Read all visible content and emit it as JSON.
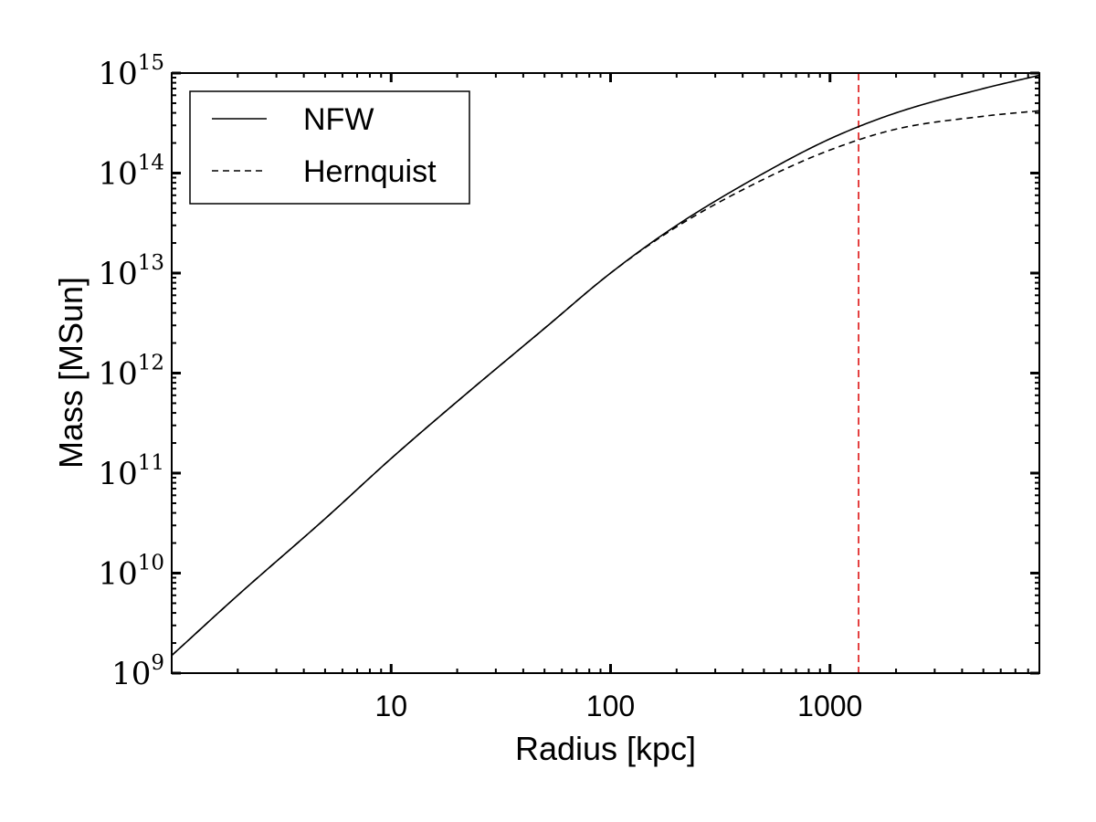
{
  "chart_data": {
    "type": "line",
    "title": "",
    "xlabel": "Radius [kpc]",
    "ylabel": "Mass [MSun]",
    "xscale": "log",
    "yscale": "log",
    "xlim": [
      1,
      9000
    ],
    "ylim": [
      1000000000.0,
      1000000000000000.0
    ],
    "xticks": [
      {
        "value": 10,
        "label": "10"
      },
      {
        "value": 100,
        "label": "100"
      },
      {
        "value": 1000,
        "label": "1000"
      }
    ],
    "yticks": [
      {
        "value": 1000000000.0,
        "base": "10",
        "exp": "9"
      },
      {
        "value": 10000000000.0,
        "base": "10",
        "exp": "10"
      },
      {
        "value": 100000000000.0,
        "base": "10",
        "exp": "11"
      },
      {
        "value": 1000000000000.0,
        "base": "10",
        "exp": "12"
      },
      {
        "value": 10000000000000.0,
        "base": "10",
        "exp": "13"
      },
      {
        "value": 100000000000000.0,
        "base": "10",
        "exp": "14"
      },
      {
        "value": 1000000000000000.0,
        "base": "10",
        "exp": "15"
      }
    ],
    "grid": false,
    "legend": "top-left",
    "series": [
      {
        "name": "NFW",
        "style": "solid",
        "color": "#000000",
        "x": [
          1,
          2,
          5,
          10,
          20,
          50,
          100,
          200,
          500,
          1000,
          2000,
          5000,
          9000
        ],
        "y": [
          1500000000.0,
          6000000000.0,
          35000000000.0,
          140000000000.0,
          520000000000.0,
          2800000000000.0,
          10000000000000.0,
          30000000000000.0,
          100000000000000.0,
          220000000000000.0,
          400000000000000.0,
          700000000000000.0,
          950000000000000.0
        ]
      },
      {
        "name": "Hernquist",
        "style": "dashed",
        "color": "#000000",
        "x": [
          1,
          2,
          5,
          10,
          20,
          50,
          100,
          200,
          500,
          1000,
          2000,
          5000,
          9000
        ],
        "y": [
          1500000000.0,
          6000000000.0,
          35000000000.0,
          140000000000.0,
          520000000000.0,
          2800000000000.0,
          10000000000000.0,
          29000000000000.0,
          87000000000000.0,
          170000000000000.0,
          275000000000000.0,
          370000000000000.0,
          420000000000000.0
        ]
      }
    ],
    "annotations": [
      {
        "type": "vline",
        "x": 1350,
        "style": "dashed",
        "color": "#dd1111"
      }
    ]
  }
}
